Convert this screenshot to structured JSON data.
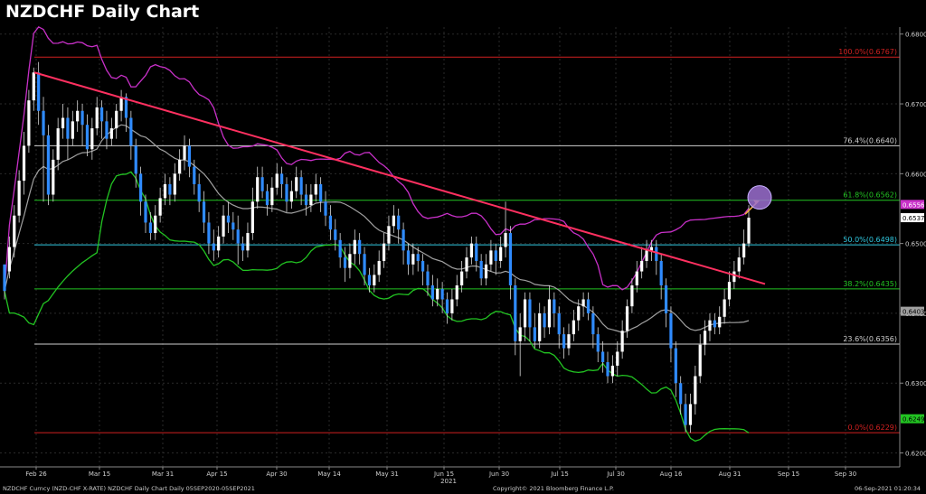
{
  "title": "NZDCHF Daily Chart",
  "footer": {
    "left": "NZDCHF Curncy (NZD-CHF X-RATE) NZDCHF Daily Chart  Daily 05SEP2020-05SEP2021",
    "center": "Copyright© 2021 Bloomberg Finance L.P.",
    "right": "06-Sep-2021 01:20:34"
  },
  "colors": {
    "background": "#000000",
    "up_candle": "#ffffff",
    "down_candle": "#2f8bff",
    "upper_band": "#c830c8",
    "middle_band": "#a0a0a0",
    "lower_band": "#22c422",
    "trendline": "#ff3060",
    "arrow": "#f0b040",
    "circle": "#9b6fd0"
  },
  "chart_data": {
    "type": "candlestick",
    "ylim": [
      0.618,
      0.681
    ],
    "y_ticks": [
      "0.6200",
      "0.6300",
      "0.6400",
      "0.6500",
      "0.6600",
      "0.6700",
      "0.6800"
    ],
    "x_ticks": [
      "Feb 26",
      "Mar 15",
      "Mar 31",
      "Apr 15",
      "Apr 30",
      "May 14",
      "May 31",
      "Jun 15",
      "Jun 30",
      "Jul 15",
      "Jul 30",
      "Aug 16",
      "Aug 31",
      "Sep 15",
      "Sep 30"
    ],
    "year_label": "2021",
    "fib_levels": [
      {
        "label": "100.0%(0.6767)",
        "value": 0.6767,
        "color": "#d02020"
      },
      {
        "label": "76.4%(0.6640)",
        "value": 0.664,
        "color": "#d0d0d0"
      },
      {
        "label": "61.8%(0.6562)",
        "value": 0.6562,
        "color": "#22c422"
      },
      {
        "label": "50.0%(0.6498)",
        "value": 0.6498,
        "color": "#30c8e0"
      },
      {
        "label": "38.2%(0.6435)",
        "value": 0.6435,
        "color": "#22c422"
      },
      {
        "label": "23.6%(0.6356)",
        "value": 0.6356,
        "color": "#d0d0d0"
      },
      {
        "label": "0.0%(0.6229)",
        "value": 0.6229,
        "color": "#d02020"
      }
    ],
    "price_tags": [
      {
        "text": "0.6556",
        "value": 0.6556,
        "bg": "#c830c8",
        "fg": "#ffffff"
      },
      {
        "text": "0.6537",
        "value": 0.6537,
        "bg": "#ffffff",
        "fg": "#000000"
      },
      {
        "text": "0.6403",
        "value": 0.6403,
        "bg": "#a0a0a0",
        "fg": "#000000"
      },
      {
        "text": "0.6249",
        "value": 0.6249,
        "bg": "#22c422",
        "fg": "#000000"
      }
    ],
    "trendline": {
      "start": {
        "x": "Feb 22",
        "y": 0.6745
      },
      "end": {
        "x": "Sep 06",
        "y": 0.6442
      }
    },
    "arrow": {
      "from_y": 0.6542,
      "to_y": 0.656
    },
    "highlight_circle_y": 0.6566,
    "candles": [
      [
        0.647,
        0.6432,
        0.647,
        0.642
      ],
      [
        0.646,
        0.6495,
        0.651,
        0.645
      ],
      [
        0.6495,
        0.654,
        0.6555,
        0.648
      ],
      [
        0.654,
        0.659,
        0.6605,
        0.653
      ],
      [
        0.659,
        0.664,
        0.666,
        0.657
      ],
      [
        0.664,
        0.6705,
        0.672,
        0.663
      ],
      [
        0.6705,
        0.6745,
        0.6752,
        0.669
      ],
      [
        0.6745,
        0.669,
        0.676,
        0.667
      ],
      [
        0.669,
        0.6655,
        0.671,
        0.656
      ],
      [
        0.6655,
        0.657,
        0.667,
        0.6555
      ],
      [
        0.657,
        0.662,
        0.6635,
        0.656
      ],
      [
        0.662,
        0.6665,
        0.668,
        0.6605
      ],
      [
        0.6665,
        0.668,
        0.67,
        0.665
      ],
      [
        0.668,
        0.665,
        0.6695,
        0.662
      ],
      [
        0.665,
        0.6675,
        0.669,
        0.664
      ],
      [
        0.6675,
        0.669,
        0.6705,
        0.666
      ],
      [
        0.669,
        0.667,
        0.67,
        0.664
      ],
      [
        0.667,
        0.6635,
        0.6685,
        0.6625
      ],
      [
        0.6635,
        0.6665,
        0.668,
        0.662
      ],
      [
        0.6665,
        0.6695,
        0.671,
        0.6655
      ],
      [
        0.6695,
        0.6675,
        0.6705,
        0.665
      ],
      [
        0.6675,
        0.665,
        0.669,
        0.6635
      ],
      [
        0.665,
        0.6665,
        0.668,
        0.664
      ],
      [
        0.6665,
        0.669,
        0.67,
        0.665
      ],
      [
        0.669,
        0.671,
        0.672,
        0.6675
      ],
      [
        0.671,
        0.668,
        0.6715,
        0.666
      ],
      [
        0.668,
        0.664,
        0.669,
        0.662
      ],
      [
        0.664,
        0.66,
        0.665,
        0.658
      ],
      [
        0.66,
        0.656,
        0.661,
        0.654
      ],
      [
        0.656,
        0.653,
        0.657,
        0.6515
      ],
      [
        0.653,
        0.6515,
        0.6545,
        0.6505
      ],
      [
        0.6515,
        0.654,
        0.6555,
        0.6505
      ],
      [
        0.654,
        0.6565,
        0.658,
        0.653
      ],
      [
        0.6565,
        0.6585,
        0.66,
        0.6555
      ],
      [
        0.6585,
        0.657,
        0.6595,
        0.6555
      ],
      [
        0.657,
        0.66,
        0.6615,
        0.656
      ],
      [
        0.66,
        0.662,
        0.6635,
        0.659
      ],
      [
        0.662,
        0.664,
        0.6655,
        0.6605
      ],
      [
        0.664,
        0.661,
        0.665,
        0.6595
      ],
      [
        0.661,
        0.6585,
        0.662,
        0.657
      ],
      [
        0.6585,
        0.656,
        0.66,
        0.6545
      ],
      [
        0.656,
        0.653,
        0.6575,
        0.6515
      ],
      [
        0.653,
        0.65,
        0.6545,
        0.6485
      ],
      [
        0.65,
        0.649,
        0.652,
        0.6475
      ],
      [
        0.649,
        0.651,
        0.6525,
        0.648
      ],
      [
        0.651,
        0.654,
        0.6555,
        0.65
      ],
      [
        0.654,
        0.653,
        0.656,
        0.6515
      ],
      [
        0.653,
        0.652,
        0.6545,
        0.6505
      ],
      [
        0.652,
        0.65,
        0.654,
        0.647
      ],
      [
        0.65,
        0.649,
        0.651,
        0.6475
      ],
      [
        0.649,
        0.6515,
        0.653,
        0.648
      ],
      [
        0.6515,
        0.656,
        0.658,
        0.6505
      ],
      [
        0.656,
        0.6595,
        0.661,
        0.655
      ],
      [
        0.6595,
        0.6575,
        0.661,
        0.6565
      ],
      [
        0.6575,
        0.6555,
        0.6585,
        0.654
      ],
      [
        0.6555,
        0.658,
        0.6595,
        0.6545
      ],
      [
        0.658,
        0.66,
        0.6615,
        0.657
      ],
      [
        0.66,
        0.6585,
        0.661,
        0.6565
      ],
      [
        0.6585,
        0.656,
        0.6595,
        0.6545
      ],
      [
        0.656,
        0.6575,
        0.659,
        0.655
      ],
      [
        0.6575,
        0.6595,
        0.661,
        0.6565
      ],
      [
        0.6595,
        0.657,
        0.6605,
        0.6555
      ],
      [
        0.657,
        0.6555,
        0.6585,
        0.654
      ],
      [
        0.6555,
        0.657,
        0.6585,
        0.6545
      ],
      [
        0.657,
        0.6585,
        0.66,
        0.656
      ],
      [
        0.6585,
        0.656,
        0.6595,
        0.6545
      ],
      [
        0.656,
        0.654,
        0.6575,
        0.6525
      ],
      [
        0.654,
        0.652,
        0.6555,
        0.6505
      ],
      [
        0.652,
        0.6505,
        0.6535,
        0.649
      ],
      [
        0.6505,
        0.648,
        0.6515,
        0.6465
      ],
      [
        0.648,
        0.6465,
        0.6495,
        0.6445
      ],
      [
        0.6465,
        0.6485,
        0.65,
        0.645
      ],
      [
        0.6485,
        0.6505,
        0.652,
        0.647
      ],
      [
        0.6505,
        0.6485,
        0.6515,
        0.647
      ],
      [
        0.6485,
        0.6455,
        0.6495,
        0.644
      ],
      [
        0.6455,
        0.644,
        0.6465,
        0.643
      ],
      [
        0.644,
        0.6455,
        0.647,
        0.643
      ],
      [
        0.6455,
        0.6475,
        0.649,
        0.6445
      ],
      [
        0.6475,
        0.65,
        0.6515,
        0.6465
      ],
      [
        0.65,
        0.6525,
        0.654,
        0.649
      ],
      [
        0.6525,
        0.654,
        0.6555,
        0.6515
      ],
      [
        0.654,
        0.652,
        0.655,
        0.65
      ],
      [
        0.652,
        0.649,
        0.653,
        0.647
      ],
      [
        0.649,
        0.647,
        0.65,
        0.6455
      ],
      [
        0.647,
        0.6485,
        0.65,
        0.6455
      ],
      [
        0.6485,
        0.6475,
        0.6495,
        0.646
      ],
      [
        0.6475,
        0.646,
        0.6485,
        0.644
      ],
      [
        0.646,
        0.644,
        0.647,
        0.6425
      ],
      [
        0.644,
        0.642,
        0.6455,
        0.641
      ],
      [
        0.642,
        0.6435,
        0.645,
        0.641
      ],
      [
        0.6435,
        0.642,
        0.6445,
        0.64
      ],
      [
        0.642,
        0.64,
        0.643,
        0.6385
      ],
      [
        0.64,
        0.642,
        0.6435,
        0.639
      ],
      [
        0.642,
        0.644,
        0.6455,
        0.641
      ],
      [
        0.644,
        0.646,
        0.6475,
        0.643
      ],
      [
        0.646,
        0.648,
        0.6495,
        0.645
      ],
      [
        0.648,
        0.65,
        0.651,
        0.647
      ],
      [
        0.65,
        0.6475,
        0.651,
        0.646
      ],
      [
        0.6475,
        0.645,
        0.6485,
        0.644
      ],
      [
        0.645,
        0.647,
        0.6485,
        0.644
      ],
      [
        0.647,
        0.649,
        0.6505,
        0.646
      ],
      [
        0.649,
        0.6475,
        0.65,
        0.6455
      ],
      [
        0.6475,
        0.6495,
        0.651,
        0.6465
      ],
      [
        0.6495,
        0.6515,
        0.656,
        0.648
      ],
      [
        0.6515,
        0.644,
        0.6525,
        0.642
      ],
      [
        0.644,
        0.636,
        0.645,
        0.634
      ],
      [
        0.636,
        0.638,
        0.64,
        0.631
      ],
      [
        0.638,
        0.642,
        0.643,
        0.636
      ],
      [
        0.642,
        0.638,
        0.643,
        0.636
      ],
      [
        0.638,
        0.636,
        0.64,
        0.635
      ],
      [
        0.636,
        0.64,
        0.6415,
        0.635
      ],
      [
        0.64,
        0.638,
        0.641,
        0.6365
      ],
      [
        0.638,
        0.642,
        0.644,
        0.637
      ],
      [
        0.642,
        0.64,
        0.643,
        0.638
      ],
      [
        0.64,
        0.637,
        0.641,
        0.635
      ],
      [
        0.637,
        0.635,
        0.638,
        0.6335
      ],
      [
        0.635,
        0.637,
        0.6385,
        0.634
      ],
      [
        0.637,
        0.639,
        0.6405,
        0.636
      ],
      [
        0.639,
        0.641,
        0.642,
        0.6375
      ],
      [
        0.641,
        0.642,
        0.643,
        0.6395
      ],
      [
        0.642,
        0.64,
        0.643,
        0.639
      ],
      [
        0.64,
        0.637,
        0.641,
        0.635
      ],
      [
        0.637,
        0.6345,
        0.638,
        0.633
      ],
      [
        0.6345,
        0.633,
        0.636,
        0.6315
      ],
      [
        0.633,
        0.631,
        0.6345,
        0.63
      ],
      [
        0.631,
        0.6325,
        0.634,
        0.63
      ],
      [
        0.6325,
        0.6345,
        0.636,
        0.631
      ],
      [
        0.6345,
        0.6375,
        0.639,
        0.6335
      ],
      [
        0.6375,
        0.641,
        0.642,
        0.6365
      ],
      [
        0.641,
        0.644,
        0.645,
        0.64
      ],
      [
        0.644,
        0.646,
        0.6475,
        0.643
      ],
      [
        0.646,
        0.6475,
        0.6495,
        0.645
      ],
      [
        0.6475,
        0.649,
        0.6505,
        0.6465
      ],
      [
        0.649,
        0.6495,
        0.6505,
        0.6475
      ],
      [
        0.6495,
        0.6475,
        0.6505,
        0.6455
      ],
      [
        0.6475,
        0.644,
        0.6485,
        0.642
      ],
      [
        0.644,
        0.64,
        0.645,
        0.638
      ],
      [
        0.64,
        0.635,
        0.641,
        0.633
      ],
      [
        0.635,
        0.63,
        0.636,
        0.628
      ],
      [
        0.63,
        0.627,
        0.631,
        0.6255
      ],
      [
        0.627,
        0.624,
        0.6285,
        0.623
      ],
      [
        0.624,
        0.627,
        0.6285,
        0.6229
      ],
      [
        0.627,
        0.631,
        0.6325,
        0.6255
      ],
      [
        0.631,
        0.6355,
        0.637,
        0.63
      ],
      [
        0.6355,
        0.6375,
        0.639,
        0.634
      ],
      [
        0.6375,
        0.639,
        0.64,
        0.636
      ],
      [
        0.639,
        0.638,
        0.64,
        0.637
      ],
      [
        0.638,
        0.6395,
        0.641,
        0.637
      ],
      [
        0.6395,
        0.642,
        0.6435,
        0.6385
      ],
      [
        0.642,
        0.6445,
        0.646,
        0.641
      ],
      [
        0.6445,
        0.646,
        0.6475,
        0.6435
      ],
      [
        0.646,
        0.648,
        0.6495,
        0.645
      ],
      [
        0.648,
        0.65,
        0.652,
        0.647
      ],
      [
        0.65,
        0.6537,
        0.6555,
        0.6495
      ]
    ]
  }
}
